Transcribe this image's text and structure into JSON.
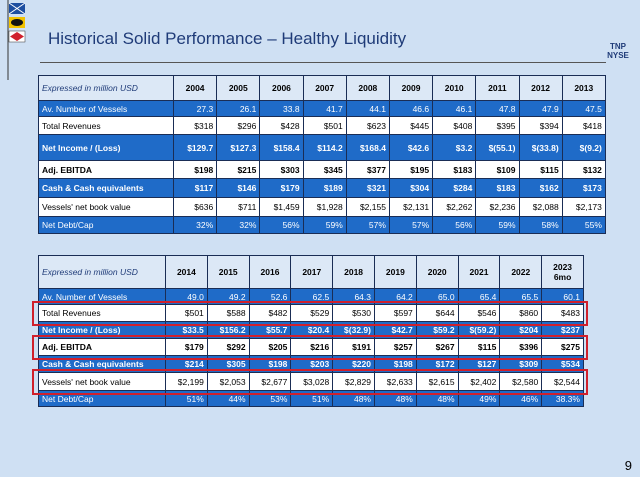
{
  "title": "Historical Solid Performance – Healthy Liquidity",
  "logo": {
    "name": "TNP",
    "exchange": "NYSE"
  },
  "page_number": "9",
  "tables": [
    {
      "header_label": "Expressed in million USD",
      "years": [
        "2004",
        "2005",
        "2006",
        "2007",
        "2008",
        "2009",
        "2010",
        "2011",
        "2012",
        "2013"
      ],
      "rows": [
        {
          "label": "Av. Number of Vessels",
          "cells": [
            "27.3",
            "26.1",
            "33.8",
            "41.7",
            "44.1",
            "46.6",
            "46.1",
            "47.8",
            "47.9",
            "47.5"
          ]
        },
        {
          "label": "Total Revenues",
          "cells": [
            "$318",
            "$296",
            "$428",
            "$501",
            "$623",
            "$445",
            "$408",
            "$395",
            "$394",
            "$418"
          ]
        },
        {
          "label": "Net Income / (Loss)",
          "cells": [
            "$129.7",
            "$127.3",
            "$158.4",
            "$114.2",
            "$168.4",
            "$42.6",
            "$3.2",
            "$(55.1)",
            "$(33.8)",
            "$(9.2)"
          ]
        },
        {
          "label": "Adj. EBITDA",
          "cells": [
            "$198",
            "$215",
            "$303",
            "$345",
            "$377",
            "$195",
            "$183",
            "$109",
            "$115",
            "$132"
          ]
        },
        {
          "label": "Cash & Cash equivalents",
          "cells": [
            "$117",
            "$146",
            "$179",
            "$189",
            "$321",
            "$304",
            "$284",
            "$183",
            "$162",
            "$173"
          ]
        },
        {
          "label": "Vessels' net book value",
          "cells": [
            "$636",
            "$711",
            "$1,459",
            "$1,928",
            "$2,155",
            "$2,131",
            "$2,262",
            "$2,236",
            "$2,088",
            "$2,173"
          ]
        },
        {
          "label": "Net Debt/Cap",
          "cells": [
            "32%",
            "32%",
            "56%",
            "59%",
            "57%",
            "57%",
            "56%",
            "59%",
            "58%",
            "55%"
          ]
        }
      ]
    },
    {
      "header_label": "Expressed in million USD",
      "years": [
        "2014",
        "2015",
        "2016",
        "2017",
        "2018",
        "2019",
        "2020",
        "2021",
        "2022",
        "2023 6mo"
      ],
      "rows": [
        {
          "label": "Av. Number of Vessels",
          "cells": [
            "49.0",
            "49.2",
            "52.6",
            "62.5",
            "64.3",
            "64.2",
            "65.0",
            "65.4",
            "65.5",
            "60.1"
          ]
        },
        {
          "label": "Total Revenues",
          "cells": [
            "$501",
            "$588",
            "$482",
            "$529",
            "$530",
            "$597",
            "$644",
            "$546",
            "$860",
            "$483"
          ]
        },
        {
          "label": "Net Income / (Loss)",
          "cells": [
            "$33.5",
            "$156.2",
            "$55.7",
            "$20.4",
            "$(32.9)",
            "$42.7",
            "$59.2",
            "$(59.2)",
            "$204",
            "$237"
          ]
        },
        {
          "label": "Adj. EBITDA",
          "cells": [
            "$179",
            "$292",
            "$205",
            "$216",
            "$191",
            "$257",
            "$267",
            "$115",
            "$396",
            "$275"
          ]
        },
        {
          "label": "Cash & Cash equivalents",
          "cells": [
            "$214",
            "$305",
            "$198",
            "$203",
            "$220",
            "$198",
            "$172",
            "$127",
            "$309",
            "$534"
          ]
        },
        {
          "label": "Vessels' net book value",
          "cells": [
            "$2,199",
            "$2,053",
            "$2,677",
            "$3,028",
            "$2,829",
            "$2,633",
            "$2,615",
            "$2,402",
            "$2,580",
            "$2,544"
          ]
        },
        {
          "label": "Net Debt/Cap",
          "cells": [
            "51%",
            "44%",
            "53%",
            "51%",
            "48%",
            "48%",
            "48%",
            "49%",
            "46%",
            "38.3%"
          ]
        }
      ]
    }
  ]
}
